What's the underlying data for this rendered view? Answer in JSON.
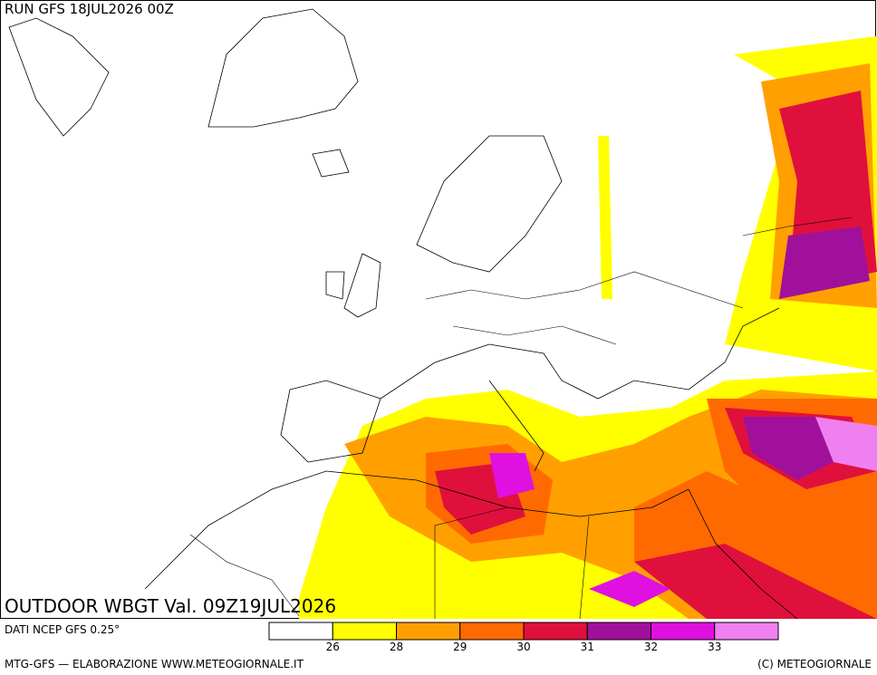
{
  "header": {
    "run": "RUN GFS 18JUL2026 00Z"
  },
  "map": {
    "title": "OUTDOOR WBGT Val. 09Z19JUL2026"
  },
  "legend": {
    "source": "DATI NCEP GFS 0.25°",
    "colors": [
      "#ffffff",
      "#ffff00",
      "#ffa000",
      "#ff6a00",
      "#e0103c",
      "#a0109a",
      "#e010e0",
      "#f080f0"
    ],
    "ticks": [
      "26",
      "28",
      "29",
      "30",
      "31",
      "32",
      "33"
    ]
  },
  "footer": {
    "left": "MTG-GFS — ELABORAZIONE WWW.METEOGIORNALE.IT",
    "right": "(C) METEOGIORNALE"
  }
}
